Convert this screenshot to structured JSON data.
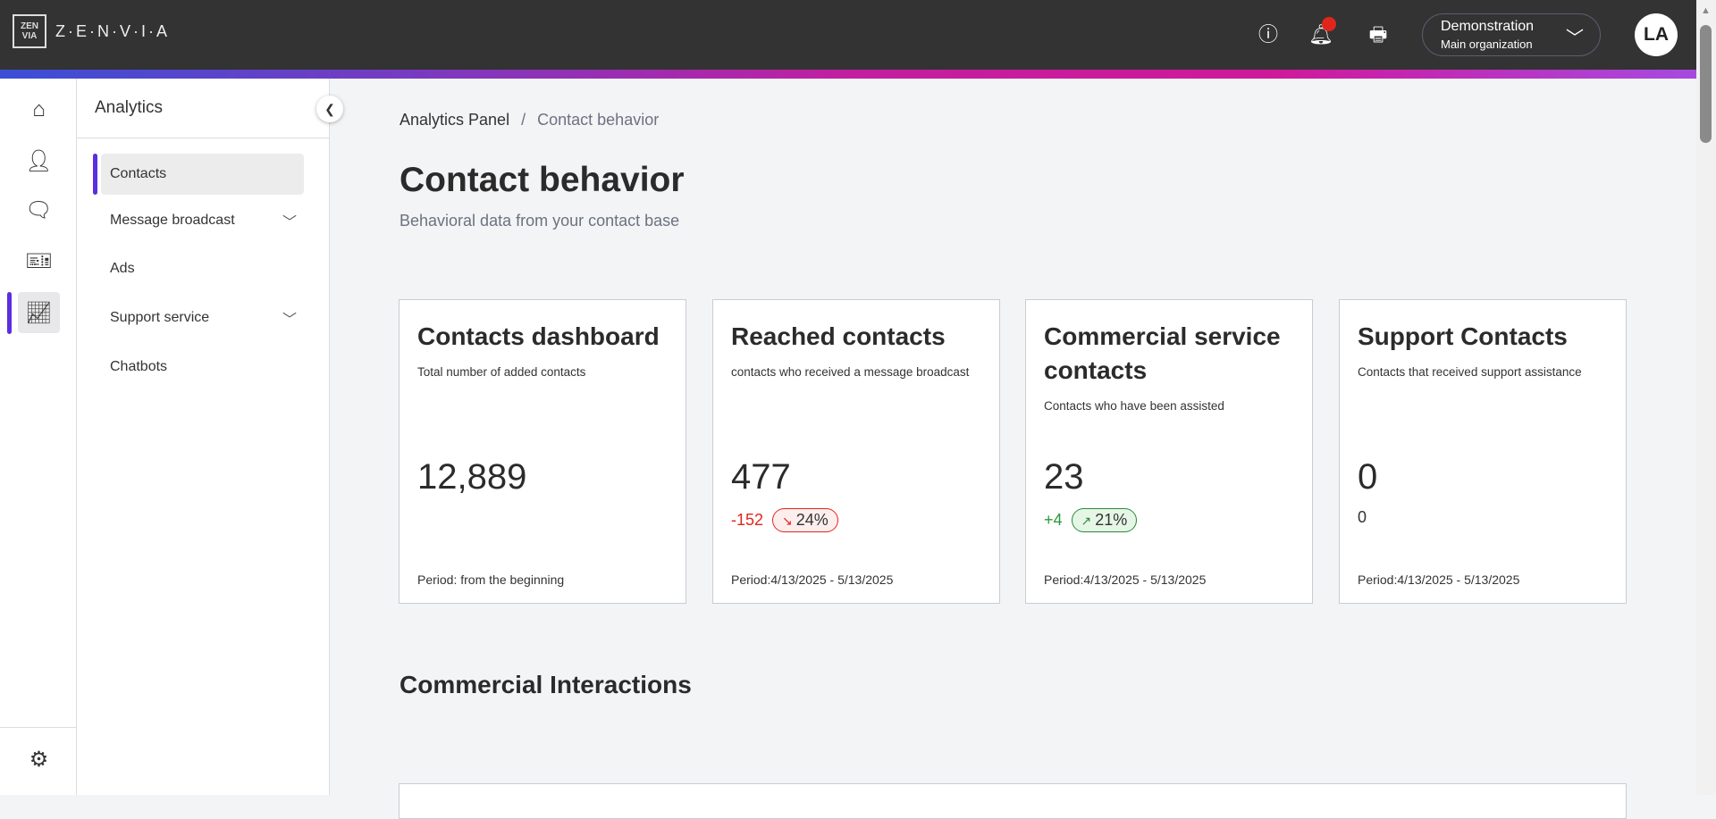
{
  "header": {
    "logo_mark": "ZEN VIA",
    "brand": "Z·E·N·V·I·A",
    "org_name": "Demonstration",
    "org_sub": "Main organization",
    "avatar": "LA",
    "notification_color": "#e0261b"
  },
  "rail": {
    "items": [
      "home-icon",
      "user-icon",
      "chat-icon",
      "ticket-icon",
      "analytics-icon"
    ],
    "settings": "gear-icon"
  },
  "sidebar": {
    "title": "Analytics",
    "items": [
      {
        "label": "Contacts",
        "active": true
      },
      {
        "label": "Message broadcast",
        "expandable": true
      },
      {
        "label": "Ads"
      },
      {
        "label": "Support service",
        "expandable": true
      },
      {
        "label": "Chatbots"
      }
    ]
  },
  "breadcrumb": {
    "parent": "Analytics Panel",
    "sep": "/",
    "current": "Contact behavior"
  },
  "page": {
    "title": "Contact behavior",
    "subtitle": "Behavioral data from your contact base"
  },
  "cards": [
    {
      "title": "Contacts dashboard",
      "desc": "Total number of added contacts",
      "value": "12,889",
      "period": "Period: from the beginning"
    },
    {
      "title": "Reached contacts",
      "desc": "contacts who received a message broadcast",
      "value": "477",
      "delta": "-152",
      "pct": "24%",
      "trend": "down",
      "period": "Period:4/13/2025 - 5/13/2025"
    },
    {
      "title": "Commercial service contacts",
      "desc": "Contacts who have been assisted",
      "value": "23",
      "delta": "+4",
      "pct": "21%",
      "trend": "up",
      "period": "Period:4/13/2025 - 5/13/2025"
    },
    {
      "title": "Support Contacts",
      "desc": "Contacts that received support assistance",
      "value": "0",
      "delta": "0",
      "period": "Period:4/13/2025 - 5/13/2025"
    }
  ],
  "section": {
    "title": "Commercial Interactions"
  }
}
